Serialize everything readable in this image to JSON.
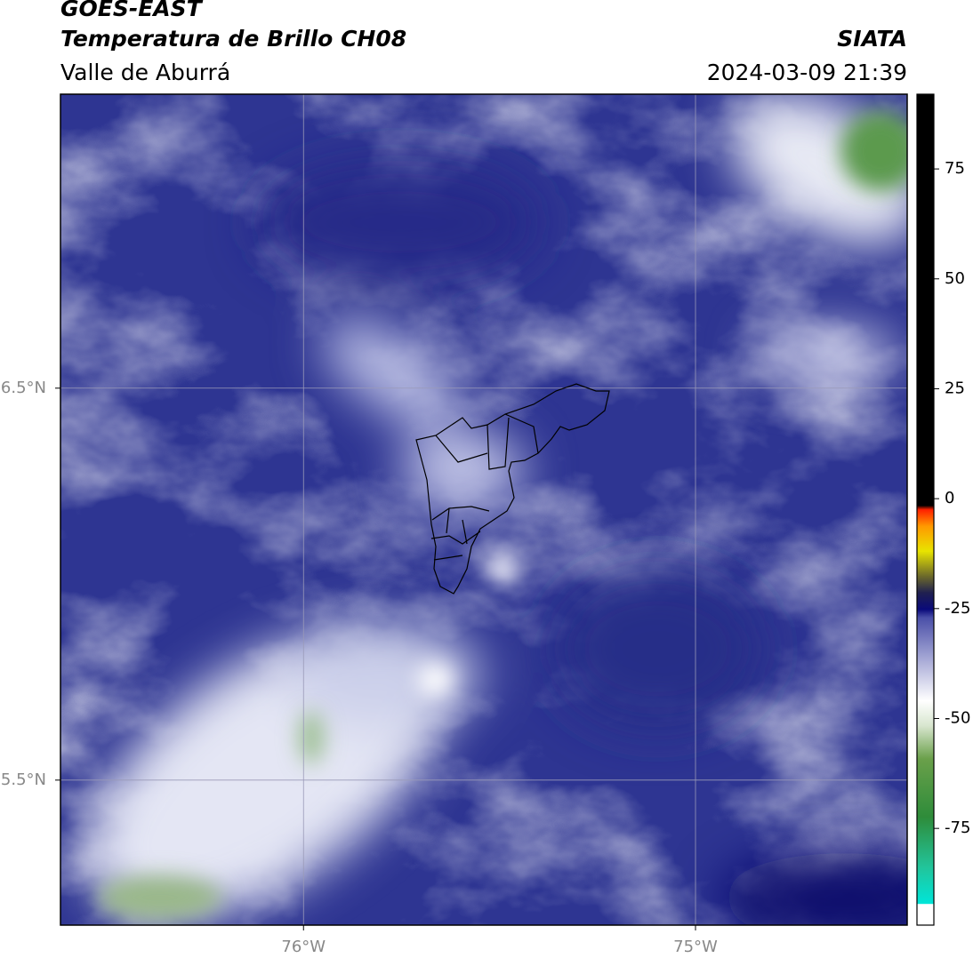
{
  "header": {
    "title": "GOES-EAST",
    "subtitle": "Temperatura de Brillo CH08",
    "region": "Valle de Aburrá",
    "source": "SIATA",
    "datetime": "2024-03-09 21:39"
  },
  "map": {
    "xlim": [
      -76.62,
      -74.46
    ],
    "ylim": [
      5.13,
      7.25
    ],
    "xticks": [
      {
        "value": -76,
        "label": "76°W"
      },
      {
        "value": -75,
        "label": "75°W"
      }
    ],
    "yticks": [
      {
        "value": 5.5,
        "label": "5.5°N"
      },
      {
        "value": 6.5,
        "label": "6.5°N"
      }
    ],
    "grid": true
  },
  "colorbar": {
    "lim": [
      -97,
      92
    ],
    "ticks": [
      -75,
      -50,
      -25,
      0,
      25,
      50,
      75
    ]
  }
}
